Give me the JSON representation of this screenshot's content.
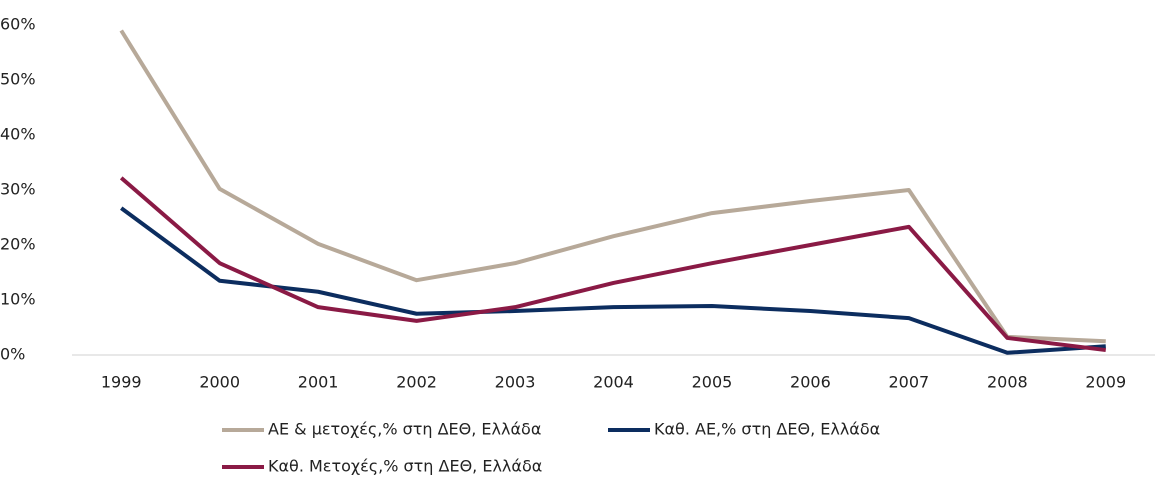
{
  "chart_data": {
    "type": "line",
    "categories": [
      "1999",
      "2000",
      "2001",
      "2002",
      "2003",
      "2004",
      "2005",
      "2006",
      "2007",
      "2008",
      "2009"
    ],
    "series": [
      {
        "name": "ΑΕ & μετοχές,% στη ΔΕΘ, Ελλάδα",
        "color": "#b7a999",
        "values": [
          59,
          30.2,
          20.2,
          13.6,
          16.7,
          21.6,
          25.8,
          28,
          30,
          3.3,
          2.5
        ]
      },
      {
        "name": "Καθ. ΑΕ,% στη ΔΕΘ, Ελλάδα",
        "color": "#0c2d5f",
        "values": [
          26.7,
          13.5,
          11.5,
          7.5,
          8,
          8.7,
          8.9,
          8,
          6.7,
          0.4,
          1.6
        ]
      },
      {
        "name": "Καθ. Μετοχές,%  στη ΔΕΘ, Ελλάδα",
        "color": "#8a1a45",
        "values": [
          32.2,
          16.7,
          8.7,
          6.2,
          8.7,
          13.1,
          16.7,
          20,
          23.3,
          3.1,
          0.9
        ]
      }
    ],
    "ylim": [
      0,
      60
    ],
    "yticks": [
      {
        "value": 0,
        "label": "0%"
      },
      {
        "value": 10,
        "label": "10%"
      },
      {
        "value": 20,
        "label": "20%"
      },
      {
        "value": 30,
        "label": "30%"
      },
      {
        "value": 40,
        "label": "40%"
      },
      {
        "value": 50,
        "label": "50%"
      },
      {
        "value": 60,
        "label": "60%"
      }
    ],
    "grid": false,
    "legend": "bottom"
  }
}
